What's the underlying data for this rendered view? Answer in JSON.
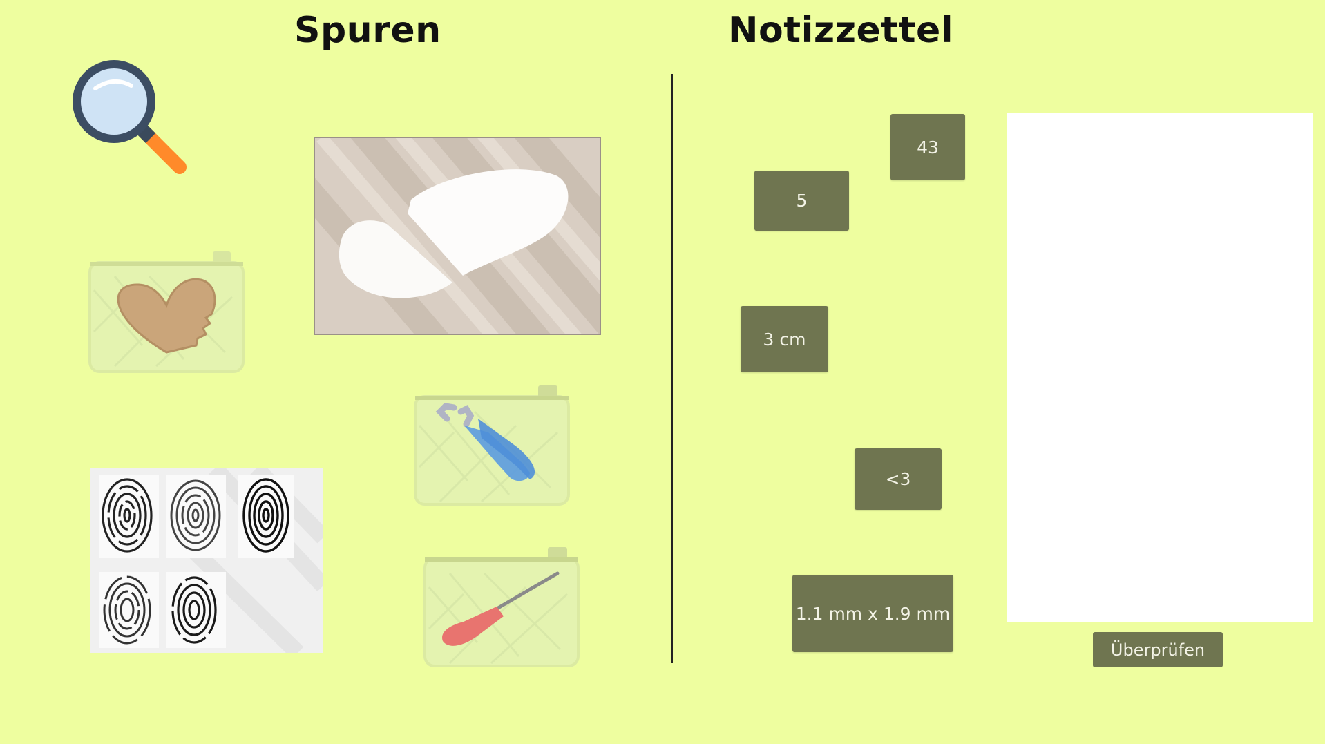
{
  "headings": {
    "traces": "Spuren",
    "notes": "Notizzettel"
  },
  "colors": {
    "background": "#eefe9f",
    "chip": "#6f7550",
    "chip_text": "#f3f3e6",
    "notepad": "#ffffff"
  },
  "icons": {
    "magnifier": "magnifying-glass-icon",
    "cookie_bag": "heart-cookie-evidence-bag",
    "soap_photo": "broken-soap-photo",
    "pliers_bag": "pliers-evidence-bag",
    "screwdriver_bag": "screwdriver-evidence-bag",
    "fingerprints": "fingerprint-card"
  },
  "notes": {
    "chips": [
      "43",
      "5",
      "3 cm",
      "<3",
      "1.1 mm x 1.9 mm"
    ]
  },
  "check_button": "Überprüfen"
}
